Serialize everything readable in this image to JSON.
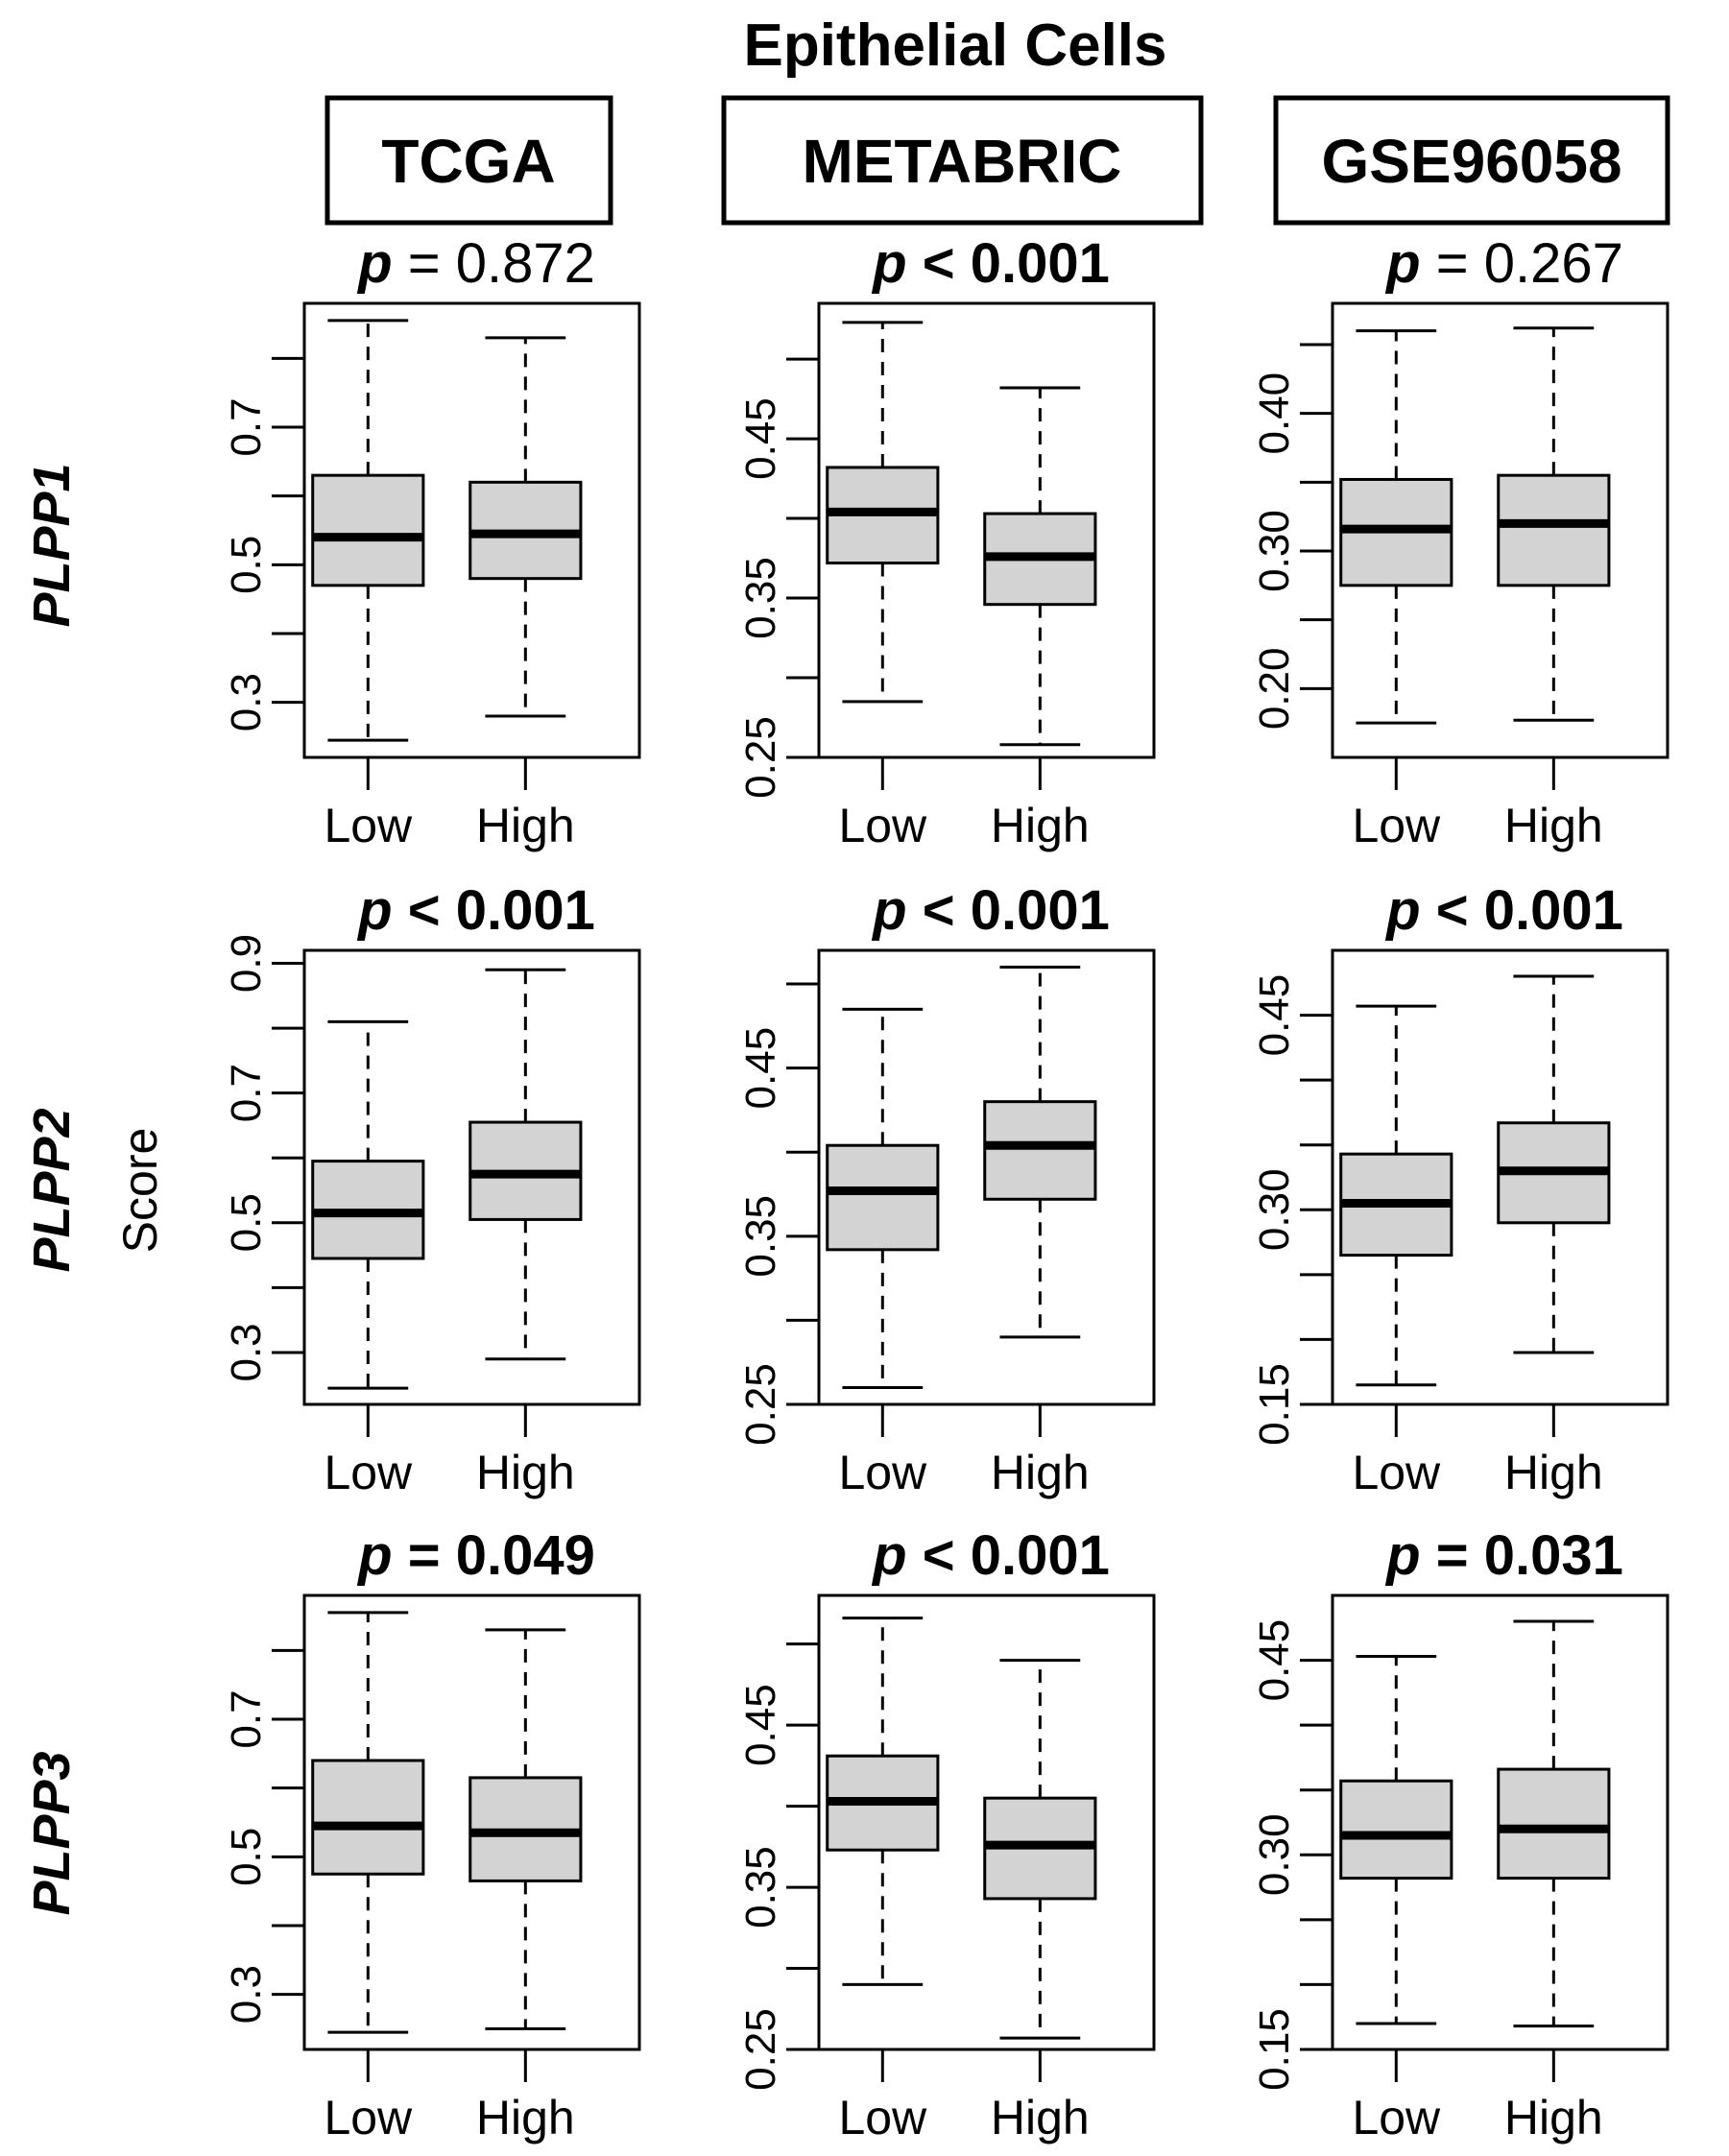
{
  "title": "Epithelial Cells",
  "ylabel": "Score",
  "x_categories": [
    "Low",
    "High"
  ],
  "chart_data": {
    "type": "boxplot",
    "title": "Epithelial Cells",
    "ylabel": "Score",
    "xlabel": "",
    "datasets": [
      "TCGA",
      "METABRIC",
      "GSE96058"
    ],
    "genes": [
      "PLPP1",
      "PLPP2",
      "PLPP3"
    ],
    "categories": [
      "Low",
      "High"
    ],
    "panels": [
      {
        "gene": "PLPP1",
        "dataset": "TCGA",
        "p_prefix": "p",
        "p_rest": " = 0.872",
        "p_bold": false,
        "ylim": [
          0.22,
          0.88
        ],
        "ticks": [
          0.3,
          0.4,
          0.5,
          0.6,
          0.7,
          0.8
        ],
        "tick_labels": [
          "0.3",
          "",
          "0.5",
          "",
          "0.7",
          ""
        ],
        "boxes": [
          {
            "category": "Low",
            "whisker_low": 0.245,
            "q1": 0.47,
            "median": 0.54,
            "q3": 0.63,
            "whisker_high": 0.855
          },
          {
            "category": "High",
            "whisker_low": 0.28,
            "q1": 0.48,
            "median": 0.545,
            "q3": 0.62,
            "whisker_high": 0.83
          }
        ]
      },
      {
        "gene": "PLPP1",
        "dataset": "METABRIC",
        "p_prefix": "p",
        "p_rest": " < 0.001",
        "p_bold": true,
        "ylim": [
          0.25,
          0.535
        ],
        "ticks": [
          0.25,
          0.3,
          0.35,
          0.4,
          0.45,
          0.5
        ],
        "tick_labels": [
          "0.25",
          "",
          "0.35",
          "",
          "0.45",
          ""
        ],
        "boxes": [
          {
            "category": "Low",
            "whisker_low": 0.285,
            "q1": 0.372,
            "median": 0.404,
            "q3": 0.432,
            "whisker_high": 0.523
          },
          {
            "category": "High",
            "whisker_low": 0.258,
            "q1": 0.346,
            "median": 0.376,
            "q3": 0.403,
            "whisker_high": 0.482
          }
        ]
      },
      {
        "gene": "PLPP1",
        "dataset": "GSE96058",
        "p_prefix": "p",
        "p_rest": " = 0.267",
        "p_bold": false,
        "ylim": [
          0.15,
          0.48
        ],
        "ticks": [
          0.2,
          0.25,
          0.3,
          0.35,
          0.4,
          0.45
        ],
        "tick_labels": [
          "0.20",
          "",
          "0.30",
          "",
          "0.40",
          ""
        ],
        "boxes": [
          {
            "category": "Low",
            "whisker_low": 0.175,
            "q1": 0.275,
            "median": 0.316,
            "q3": 0.352,
            "whisker_high": 0.46
          },
          {
            "category": "High",
            "whisker_low": 0.177,
            "q1": 0.275,
            "median": 0.32,
            "q3": 0.355,
            "whisker_high": 0.462
          }
        ]
      },
      {
        "gene": "PLPP2",
        "dataset": "TCGA",
        "p_prefix": "p",
        "p_rest": " < 0.001",
        "p_bold": true,
        "ylim": [
          0.22,
          0.92
        ],
        "ticks": [
          0.3,
          0.4,
          0.5,
          0.6,
          0.7,
          0.8,
          0.9
        ],
        "tick_labels": [
          "0.3",
          "",
          "0.5",
          "",
          "0.7",
          "",
          "0.9"
        ],
        "boxes": [
          {
            "category": "Low",
            "whisker_low": 0.245,
            "q1": 0.445,
            "median": 0.515,
            "q3": 0.595,
            "whisker_high": 0.81
          },
          {
            "category": "High",
            "whisker_low": 0.29,
            "q1": 0.505,
            "median": 0.575,
            "q3": 0.655,
            "whisker_high": 0.89
          }
        ]
      },
      {
        "gene": "PLPP2",
        "dataset": "METABRIC",
        "p_prefix": "p",
        "p_rest": " < 0.001",
        "p_bold": true,
        "ylim": [
          0.25,
          0.52
        ],
        "ticks": [
          0.25,
          0.3,
          0.35,
          0.4,
          0.45,
          0.5
        ],
        "tick_labels": [
          "0.25",
          "",
          "0.35",
          "",
          "0.45",
          ""
        ],
        "boxes": [
          {
            "category": "Low",
            "whisker_low": 0.26,
            "q1": 0.342,
            "median": 0.377,
            "q3": 0.404,
            "whisker_high": 0.485
          },
          {
            "category": "High",
            "whisker_low": 0.29,
            "q1": 0.372,
            "median": 0.404,
            "q3": 0.43,
            "whisker_high": 0.51
          }
        ]
      },
      {
        "gene": "PLPP2",
        "dataset": "GSE96058",
        "p_prefix": "p",
        "p_rest": " < 0.001",
        "p_bold": true,
        "ylim": [
          0.15,
          0.5
        ],
        "ticks": [
          0.15,
          0.2,
          0.25,
          0.3,
          0.35,
          0.4,
          0.45
        ],
        "tick_labels": [
          "0.15",
          "",
          "",
          "0.30",
          "",
          "",
          "0.45"
        ],
        "boxes": [
          {
            "category": "Low",
            "whisker_low": 0.165,
            "q1": 0.265,
            "median": 0.305,
            "q3": 0.343,
            "whisker_high": 0.457
          },
          {
            "category": "High",
            "whisker_low": 0.19,
            "q1": 0.29,
            "median": 0.33,
            "q3": 0.367,
            "whisker_high": 0.48
          }
        ]
      },
      {
        "gene": "PLPP3",
        "dataset": "TCGA",
        "p_prefix": "p",
        "p_rest": " = 0.049",
        "p_bold": true,
        "ylim": [
          0.22,
          0.88
        ],
        "ticks": [
          0.3,
          0.4,
          0.5,
          0.6,
          0.7,
          0.8
        ],
        "tick_labels": [
          "0.3",
          "",
          "0.5",
          "",
          "0.7",
          ""
        ],
        "boxes": [
          {
            "category": "Low",
            "whisker_low": 0.245,
            "q1": 0.475,
            "median": 0.545,
            "q3": 0.64,
            "whisker_high": 0.855
          },
          {
            "category": "High",
            "whisker_low": 0.25,
            "q1": 0.465,
            "median": 0.535,
            "q3": 0.615,
            "whisker_high": 0.83
          }
        ]
      },
      {
        "gene": "PLPP3",
        "dataset": "METABRIC",
        "p_prefix": "p",
        "p_rest": " < 0.001",
        "p_bold": true,
        "ylim": [
          0.25,
          0.53
        ],
        "ticks": [
          0.25,
          0.3,
          0.35,
          0.4,
          0.45,
          0.5
        ],
        "tick_labels": [
          "0.25",
          "",
          "0.35",
          "",
          "0.45",
          ""
        ],
        "boxes": [
          {
            "category": "Low",
            "whisker_low": 0.29,
            "q1": 0.373,
            "median": 0.403,
            "q3": 0.431,
            "whisker_high": 0.516
          },
          {
            "category": "High",
            "whisker_low": 0.257,
            "q1": 0.343,
            "median": 0.376,
            "q3": 0.405,
            "whisker_high": 0.49
          }
        ]
      },
      {
        "gene": "PLPP3",
        "dataset": "GSE96058",
        "p_prefix": "p",
        "p_rest": " = 0.031",
        "p_bold": true,
        "ylim": [
          0.15,
          0.5
        ],
        "ticks": [
          0.15,
          0.2,
          0.25,
          0.3,
          0.35,
          0.4,
          0.45
        ],
        "tick_labels": [
          "0.15",
          "",
          "",
          "0.30",
          "",
          "",
          "0.45"
        ],
        "boxes": [
          {
            "category": "Low",
            "whisker_low": 0.17,
            "q1": 0.282,
            "median": 0.315,
            "q3": 0.357,
            "whisker_high": 0.453
          },
          {
            "category": "High",
            "whisker_low": 0.168,
            "q1": 0.282,
            "median": 0.32,
            "q3": 0.366,
            "whisker_high": 0.48
          }
        ]
      }
    ]
  }
}
